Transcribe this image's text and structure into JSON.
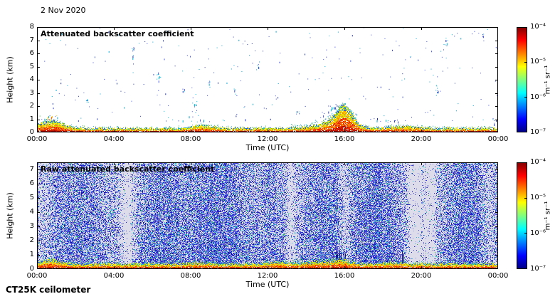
{
  "date_label": "2 Nov 2020",
  "footer_label": "CT25K ceilometer",
  "chart_data": {
    "type": "heatmap",
    "x_hours_range": [
      0,
      24
    ],
    "colorbar": {
      "scale": "logarithmic",
      "min": 1e-07,
      "max": 0.0001,
      "tick_labels": [
        "10⁻⁴",
        "10⁻⁵",
        "10⁻⁶",
        "10⁻⁷"
      ],
      "unit": "m⁻¹ sr⁻¹",
      "colormap": "jet"
    },
    "panels": [
      {
        "title": "Attenuated backscatter coefficient",
        "xlabel": "Time (UTC)",
        "ylabel": "Height (km)",
        "x_tick_labels": [
          "00:00",
          "04:00",
          "08:00",
          "12:00",
          "16:00",
          "20:00",
          "00:00"
        ],
        "y_tick_labels": [
          "0",
          "1",
          "2",
          "3",
          "4",
          "5",
          "6",
          "7",
          "8"
        ],
        "y_range_km": [
          0,
          8
        ],
        "features": {
          "surface_aerosol_layer": "continuous strong backscatter (~1e-4, red/orange/yellow) from 0 to ~0.5 km all day, peaking to ~1.5 km around 15:30-16:30 and near 00:00-01:30",
          "echoes": "sparse weak cloud/precip echoes (blue/cyan dots) scattered between 1 and 7.5 km",
          "background": "white = below detection"
        },
        "render": {
          "echo_clusters": [
            {
              "t": 0.6,
              "km": 0.9,
              "n": 60,
              "st": 0.5,
              "sk": 0.35,
              "multi": true
            },
            {
              "t": 2.6,
              "km": 2.5,
              "n": 6,
              "st": 0.1,
              "sk": 0.3
            },
            {
              "t": 5.0,
              "km": 6.1,
              "n": 10,
              "st": 0.08,
              "sk": 0.5
            },
            {
              "t": 6.3,
              "km": 4.2,
              "n": 8,
              "st": 0.1,
              "sk": 0.4
            },
            {
              "t": 7.6,
              "km": 3.1,
              "n": 6,
              "st": 0.1,
              "sk": 0.3
            },
            {
              "t": 8.2,
              "km": 2.3,
              "n": 8,
              "st": 0.15,
              "sk": 0.5
            },
            {
              "t": 8.5,
              "km": 1.0,
              "n": 15,
              "st": 1.8,
              "sk": 0.25
            },
            {
              "t": 8.9,
              "km": 3.9,
              "n": 5,
              "st": 0.1,
              "sk": 0.3
            },
            {
              "t": 10.3,
              "km": 3.1,
              "n": 6,
              "st": 0.1,
              "sk": 0.3
            },
            {
              "t": 11.5,
              "km": 5.2,
              "n": 4,
              "st": 0.08,
              "sk": 0.3
            },
            {
              "t": 13.6,
              "km": 1.6,
              "n": 5,
              "st": 0.1,
              "sk": 0.3
            },
            {
              "t": 15.4,
              "km": 1.9,
              "n": 12,
              "st": 0.25,
              "sk": 0.4
            },
            {
              "t": 16.0,
              "km": 1.3,
              "n": 25,
              "st": 1.5,
              "sk": 0.3
            },
            {
              "t": 18.5,
              "km": 0.9,
              "n": 12,
              "st": 1.0,
              "sk": 0.2
            },
            {
              "t": 20.8,
              "km": 3.3,
              "n": 8,
              "st": 0.12,
              "sk": 0.4
            },
            {
              "t": 21.3,
              "km": 6.9,
              "n": 7,
              "st": 0.1,
              "sk": 0.5
            },
            {
              "t": 23.2,
              "km": 7.2,
              "n": 5,
              "st": 0.08,
              "sk": 0.4
            },
            {
              "t": 23.8,
              "km": 0.9,
              "n": 6,
              "st": 0.1,
              "sk": 0.3
            }
          ],
          "surface_bumps": [
            {
              "t": 0.7,
              "amp": 10,
              "sigma": 0.6
            },
            {
              "t": 8.6,
              "amp": 4,
              "sigma": 0.5
            },
            {
              "t": 15.3,
              "amp": 8,
              "sigma": 0.8
            },
            {
              "t": 15.9,
              "amp": 22,
              "sigma": 0.35
            },
            {
              "t": 16.3,
              "amp": 8,
              "sigma": 0.4
            },
            {
              "t": 19.0,
              "amp": 3,
              "sigma": 0.6
            }
          ]
        }
      },
      {
        "title": "Raw attenuated backscatter coefficient",
        "xlabel": "Time (UTC)",
        "ylabel": "Height (km)",
        "x_tick_labels": [
          "00:00",
          "04:00",
          "08:00",
          "12:00",
          "16:00",
          "20:00",
          "00:00"
        ],
        "y_tick_labels": [
          "0",
          "1",
          "2",
          "3",
          "4",
          "5",
          "6",
          "7"
        ],
        "y_range_km": [
          0,
          7.5
        ],
        "features": {
          "surface_aerosol_layer": "continuous strong backscatter band (red/orange/yellow) from 0 to ~0.5 km all day",
          "noise": "dense blue/cyan instrument noise speckle filling 0.5-7.5 km, with darker (denser) vertical bands and lighter gaps near ~04:40, ~13:15, ~16:00, ~19:30-20:40 and ~23:30",
          "background": "pale lavender-grey"
        },
        "render": {
          "dense_bands": [
            {
              "c": 2.3,
              "s": 1.0,
              "amp": 0.22
            },
            {
              "c": 6.4,
              "s": 0.9,
              "amp": 0.3
            },
            {
              "c": 9.5,
              "s": 1.1,
              "amp": 0.3
            },
            {
              "c": 12.3,
              "s": 0.6,
              "amp": 0.22
            },
            {
              "c": 14.9,
              "s": 0.9,
              "amp": 0.26
            },
            {
              "c": 18.0,
              "s": 1.0,
              "amp": 0.3
            },
            {
              "c": 22.2,
              "s": 1.1,
              "amp": 0.32
            }
          ],
          "gaps": [
            {
              "c": 0.3,
              "s": 0.3,
              "amp": -0.2
            },
            {
              "c": 4.7,
              "s": 0.25,
              "amp": -0.35
            },
            {
              "c": 13.2,
              "s": 0.2,
              "amp": -0.3
            },
            {
              "c": 16.0,
              "s": 0.22,
              "amp": -0.34
            },
            {
              "c": 19.6,
              "s": 0.3,
              "amp": -0.3
            },
            {
              "c": 20.0,
              "s": 0.8,
              "amp": -0.18
            },
            {
              "c": 20.5,
              "s": 0.2,
              "amp": -0.25
            },
            {
              "c": 23.5,
              "s": 0.25,
              "amp": -0.3
            }
          ],
          "surface_bumps": [
            {
              "t": 0.7,
              "amp": 6,
              "sigma": 0.5
            },
            {
              "t": 8.5,
              "amp": 2,
              "sigma": 0.5
            },
            {
              "t": 12.5,
              "amp": 3,
              "sigma": 0.4
            },
            {
              "t": 14.5,
              "amp": 3,
              "sigma": 0.6
            },
            {
              "t": 15.8,
              "amp": 6,
              "sigma": 0.4
            },
            {
              "t": 18.5,
              "amp": 2,
              "sigma": 0.5
            }
          ],
          "dark_streaks": [
            15.55,
            15.75,
            15.95,
            19.0
          ]
        }
      }
    ]
  }
}
